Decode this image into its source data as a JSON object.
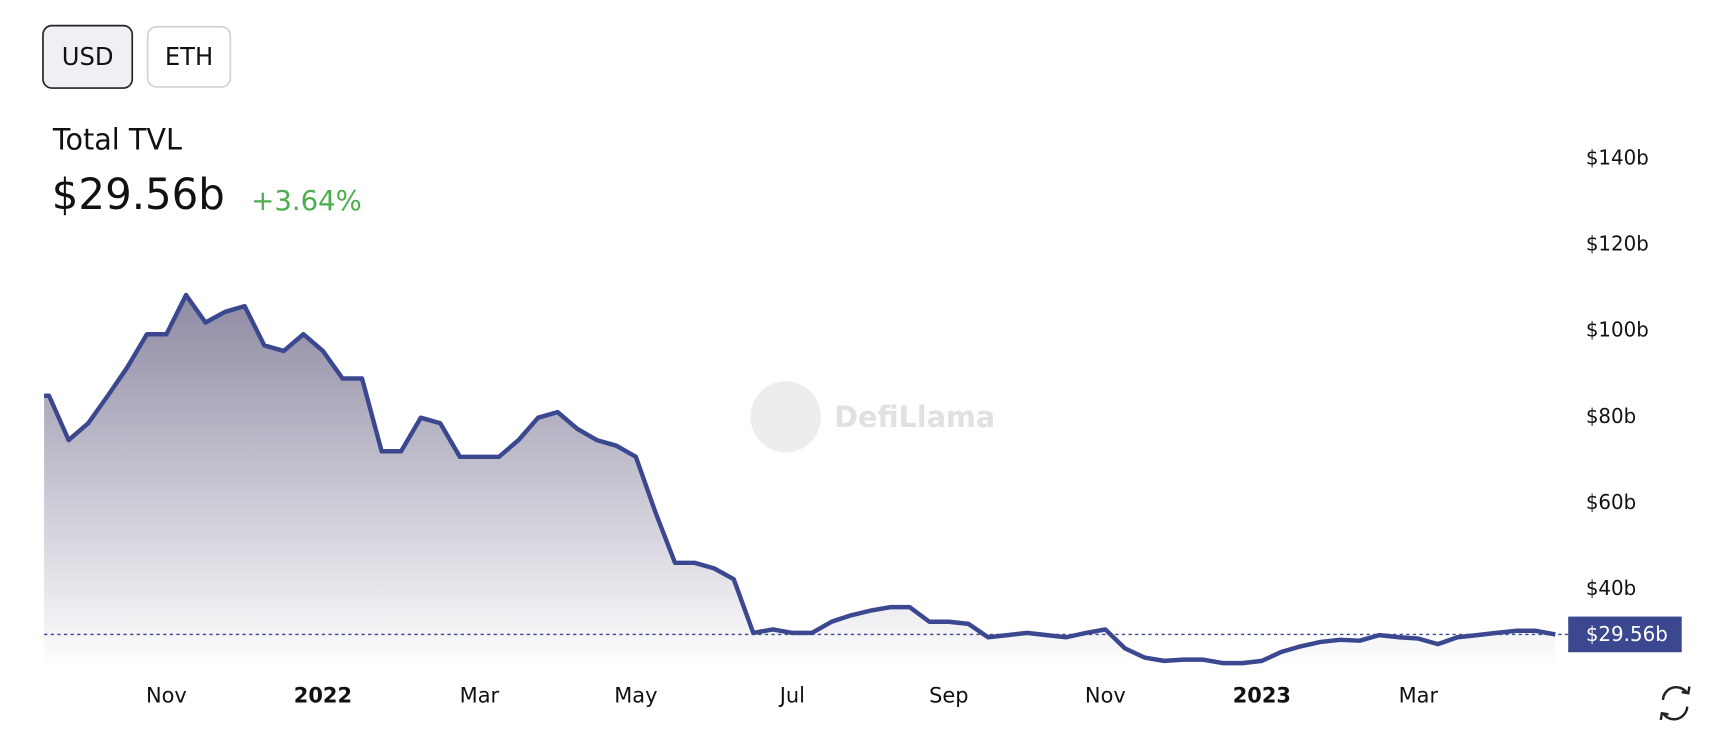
{
  "buttons": [
    "USD",
    "ETH"
  ],
  "chart_data": {
    "type": "area",
    "title": "Total TVL",
    "current": {
      "value": 29.56,
      "label": "$29.56b"
    },
    "change": "+3.64%",
    "watermark": "DefiLlama",
    "color": "#3b4890",
    "categories": [
      null,
      null,
      null,
      null,
      null,
      null,
      "Nov",
      null,
      null,
      null,
      null,
      null,
      null,
      null,
      "2022",
      null,
      null,
      null,
      null,
      null,
      null,
      null,
      "Mar",
      null,
      null,
      null,
      null,
      null,
      null,
      null,
      "May",
      null,
      null,
      null,
      null,
      null,
      null,
      null,
      "Jul",
      null,
      null,
      null,
      null,
      null,
      null,
      null,
      "Sep",
      null,
      null,
      null,
      null,
      null,
      null,
      null,
      "Nov",
      null,
      null,
      null,
      null,
      null,
      null,
      null,
      "2023",
      null,
      null,
      null,
      null,
      null,
      null,
      null,
      "Mar",
      null,
      null,
      null,
      null,
      null,
      null,
      null
    ],
    "values": [
      85,
      74.7,
      78.6,
      85,
      91.6,
      99.3,
      99.3,
      108.4,
      102,
      104.5,
      105.8,
      96.7,
      95.4,
      99.3,
      95.4,
      89,
      89,
      72.1,
      72.1,
      79.9,
      78.6,
      70.8,
      70.8,
      70.8,
      74.7,
      79.9,
      81.2,
      77.3,
      74.7,
      73.4,
      70.8,
      57.9,
      46.2,
      46.2,
      44.9,
      42.4,
      29.9,
      30.7,
      29.9,
      29.9,
      32.5,
      34,
      35.1,
      35.9,
      35.9,
      32.5,
      32.5,
      32,
      28.9,
      29.4,
      29.9,
      29.4,
      28.9,
      29.9,
      30.7,
      26.3,
      24.2,
      23.4,
      23.7,
      23.7,
      22.9,
      22.9,
      23.4,
      25.5,
      26.8,
      27.8,
      28.3,
      28.1,
      29.4,
      28.9,
      28.6,
      27.3,
      28.9,
      29.4,
      29.9,
      30.4,
      30.4,
      29.56
    ],
    "ylim": [
      21.6,
      150
    ],
    "yticks": [
      {
        "value": 40,
        "label": "$40b"
      },
      {
        "value": 60,
        "label": "$60b"
      },
      {
        "value": 80,
        "label": "$80b"
      },
      {
        "value": 100,
        "label": "$100b"
      },
      {
        "value": 120,
        "label": "$120b"
      },
      {
        "value": 140,
        "label": "$140b"
      }
    ]
  }
}
